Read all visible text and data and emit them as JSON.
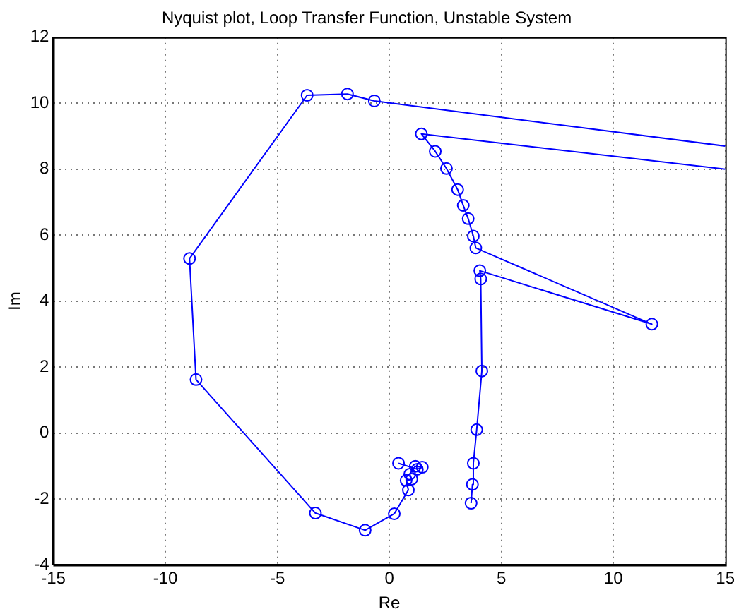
{
  "chart_data": {
    "type": "line",
    "title": "Nyquist plot, Loop Transfer Function, Unstable System",
    "xlabel": "Re",
    "ylabel": "Im",
    "xlim": [
      -15,
      15
    ],
    "xticks": [
      -15,
      -10,
      -5,
      0,
      5,
      10,
      15
    ],
    "ylim": [
      -4,
      12
    ],
    "yticks": [
      -4,
      -2,
      0,
      2,
      4,
      6,
      8,
      10,
      12
    ],
    "grid": true,
    "marker": "circle",
    "line_style": "solid",
    "series": [
      {
        "color": "#0000ff",
        "x": [
          3.65,
          3.71,
          3.75,
          3.9,
          4.13,
          4.08,
          4.04,
          11.72,
          3.86,
          3.75,
          3.52,
          3.3,
          3.05,
          2.55,
          2.05,
          1.43,
          15,
          null,
          15,
          -0.67,
          -1.87,
          -3.67,
          -8.92,
          -8.63,
          -3.3,
          -1.08,
          0.22,
          0.85,
          0.75,
          1.0,
          0.91,
          1.16,
          1.47,
          1.25,
          0.41
        ],
        "values": [
          -2.13,
          -1.56,
          -0.92,
          0.1,
          1.88,
          4.67,
          4.92,
          3.3,
          5.61,
          5.97,
          6.5,
          6.9,
          7.38,
          8.02,
          8.54,
          9.07,
          8.0,
          null,
          8.7,
          10.07,
          10.28,
          10.24,
          5.29,
          1.62,
          -2.43,
          -2.95,
          -2.45,
          -1.73,
          -1.44,
          -1.4,
          -1.25,
          -1.01,
          -1.04,
          -1.1,
          -0.92
        ]
      }
    ]
  }
}
